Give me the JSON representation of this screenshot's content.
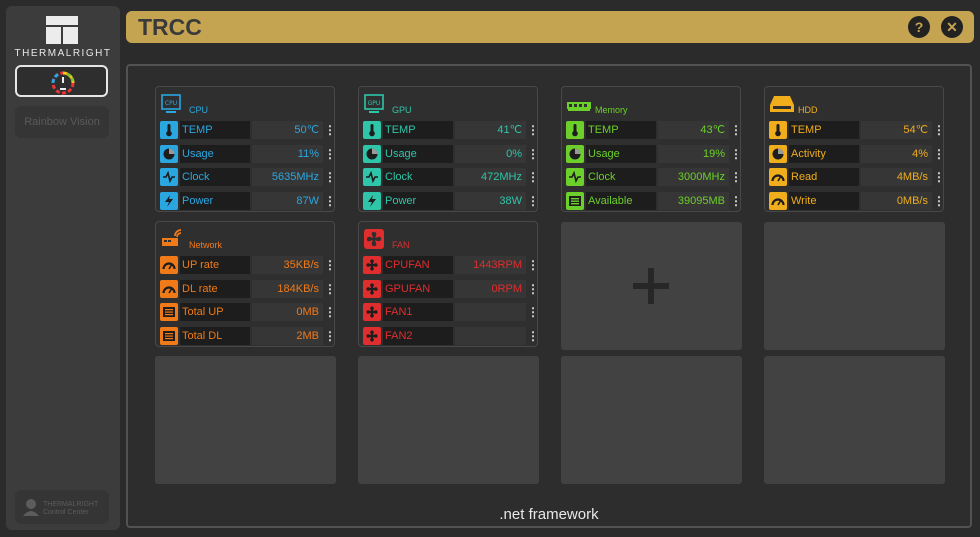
{
  "app": {
    "brand": "THERMALRIGHT",
    "title": "TRCC",
    "help_label": "?",
    "close_label": "✕",
    "footer": ".net framework"
  },
  "sidebar": {
    "rainbow_label": "Rainbow Vision",
    "tcc_line1": "THERMALRIGHT",
    "tcc_line2": "Control Center"
  },
  "panels": [
    {
      "name": "CPU",
      "color": "#2aa7e0",
      "rows": [
        {
          "label": "TEMP",
          "value": "50℃",
          "icon": "thermometer-icon"
        },
        {
          "label": "Usage",
          "value": "11%",
          "icon": "pie-icon"
        },
        {
          "label": "Clock",
          "value": "5635MHz",
          "icon": "pulse-icon"
        },
        {
          "label": "Power",
          "value": "87W",
          "icon": "lightning-icon"
        }
      ]
    },
    {
      "name": "GPU",
      "color": "#2fc5a9",
      "rows": [
        {
          "label": "TEMP",
          "value": "41℃",
          "icon": "thermometer-icon"
        },
        {
          "label": "Usage",
          "value": "0%",
          "icon": "pie-icon"
        },
        {
          "label": "Clock",
          "value": "472MHz",
          "icon": "pulse-icon"
        },
        {
          "label": "Power",
          "value": "38W",
          "icon": "lightning-icon"
        }
      ]
    },
    {
      "name": "Memory",
      "color": "#6ccf2a",
      "rows": [
        {
          "label": "TEMP",
          "value": "43℃",
          "icon": "thermometer-icon"
        },
        {
          "label": "Usage",
          "value": "19%",
          "icon": "pie-icon"
        },
        {
          "label": "Clock",
          "value": "3000MHz",
          "icon": "pulse-icon"
        },
        {
          "label": "Available",
          "value": "39095MB",
          "icon": "memory-icon"
        }
      ]
    },
    {
      "name": "HDD",
      "color": "#f0ad1c",
      "rows": [
        {
          "label": "TEMP",
          "value": "54℃",
          "icon": "thermometer-icon"
        },
        {
          "label": "Activity",
          "value": "4%",
          "icon": "pie-icon"
        },
        {
          "label": "Read",
          "value": "4MB/s",
          "icon": "gauge-icon"
        },
        {
          "label": "Write",
          "value": "0MB/s",
          "icon": "gauge-icon"
        }
      ]
    },
    {
      "name": "Network",
      "color": "#f07a18",
      "rows": [
        {
          "label": "UP rate",
          "value": "35KB/s",
          "icon": "gauge-icon"
        },
        {
          "label": "DL rate",
          "value": "184KB/s",
          "icon": "gauge-icon"
        },
        {
          "label": "Total UP",
          "value": "0MB",
          "icon": "list-icon"
        },
        {
          "label": "Total DL",
          "value": "2MB",
          "icon": "list-icon"
        }
      ]
    },
    {
      "name": "FAN",
      "color": "#e02d2d",
      "rows": [
        {
          "label": "CPUFAN",
          "value": "1443RPM",
          "icon": "fan-icon"
        },
        {
          "label": "GPUFAN",
          "value": "0RPM",
          "icon": "fan-icon"
        },
        {
          "label": "FAN1",
          "value": "",
          "icon": "fan-icon"
        },
        {
          "label": "FAN2",
          "value": "",
          "icon": "fan-icon"
        }
      ]
    }
  ]
}
